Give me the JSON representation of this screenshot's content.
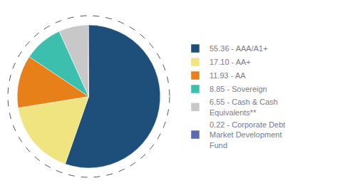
{
  "chart_data": {
    "type": "pie",
    "categories": [
      "55.36 - AAA/A1+",
      "17.10 - AA+",
      "11.93 - AA",
      "8.85 - Sovereign",
      "6.55 - Cash & Cash\nEquivalents**",
      "0.22 - Corporate Debt\nMarket Development\nFund"
    ],
    "values": [
      55.36,
      17.1,
      11.93,
      8.85,
      6.55,
      0.22
    ],
    "colors": [
      "#1e4f7a",
      "#f0e480",
      "#e8801a",
      "#3dbfad",
      "#c8c8c8",
      "#5b6ab5"
    ],
    "legend": "right"
  }
}
